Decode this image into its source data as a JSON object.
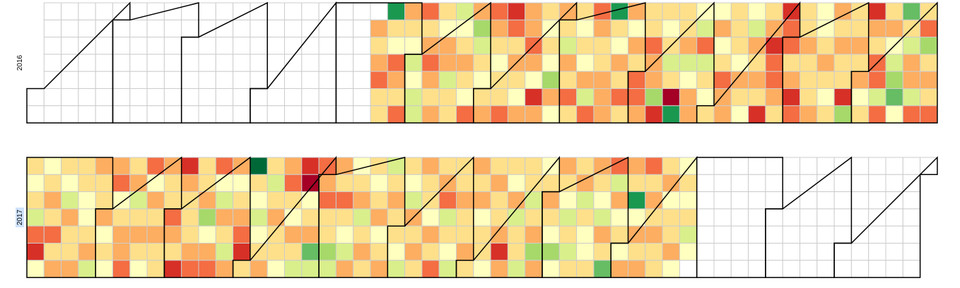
{
  "chart_data": {
    "type": "calendar",
    "colors": [
      "#a50026",
      "#d73027",
      "#f46d43",
      "#fdae61",
      "#fee08b",
      "#ffffbf",
      "#d9ef8b",
      "#a6d96a",
      "#66bd63",
      "#1a9850",
      "#006837"
    ],
    "years": [
      {
        "label": "2016",
        "values": [
          null,
          null,
          null,
          null,
          null,
          null,
          null,
          null,
          null,
          null,
          null,
          null,
          null,
          null,
          null,
          null,
          null,
          null,
          null,
          null,
          null,
          null,
          null,
          null,
          null,
          null,
          null,
          null,
          null,
          null,
          null,
          null,
          null,
          null,
          null,
          null,
          null,
          null,
          null,
          null,
          null,
          null,
          null,
          null,
          null,
          null,
          null,
          null,
          null,
          null,
          null,
          null,
          null,
          null,
          null,
          null,
          null,
          null,
          null,
          null,
          null,
          null,
          null,
          null,
          null,
          null,
          null,
          null,
          null,
          null,
          null,
          null,
          null,
          null,
          null,
          null,
          null,
          null,
          null,
          null,
          null,
          null,
          null,
          null,
          null,
          null,
          null,
          null,
          null,
          null,
          null,
          null,
          null,
          null,
          null,
          null,
          null,
          null,
          null,
          null,
          null,
          null,
          null,
          null,
          null,
          null,
          null,
          null,
          null,
          null,
          null,
          null,
          null,
          null,
          null,
          null,
          null,
          null,
          null,
          null,
          null,
          null,
          null,
          null,
          null,
          null,
          null,
          null,
          null,
          null,
          null,
          null,
          null,
          null,
          null,
          null,
          3,
          4,
          3,
          2,
          4,
          4,
          9,
          4,
          5,
          2,
          3,
          4,
          2,
          3,
          4,
          5,
          6,
          5,
          6,
          6,
          2,
          4,
          3,
          2,
          3,
          4,
          3,
          4,
          5,
          3,
          3,
          6,
          4,
          4,
          6,
          5,
          4,
          3,
          4,
          5,
          2,
          3,
          7,
          6,
          4,
          5,
          4,
          3,
          2,
          3,
          4,
          5,
          4,
          4,
          2,
          1,
          2,
          4,
          3,
          4,
          5,
          3,
          3,
          3,
          2,
          3,
          5,
          1,
          3,
          4,
          5,
          4,
          5,
          7,
          3,
          5,
          3,
          4,
          6,
          3,
          4,
          2,
          4,
          4,
          5,
          4,
          5,
          3,
          6,
          2,
          2,
          3,
          4,
          4,
          3,
          3,
          3,
          9,
          4,
          5,
          3,
          4,
          2,
          4,
          3,
          5,
          3,
          4,
          2,
          2,
          3,
          4,
          4,
          2,
          3,
          3,
          7,
          1,
          4,
          5,
          4,
          6,
          4,
          0,
          9,
          4,
          4,
          3,
          6,
          5,
          3,
          3,
          5,
          6,
          2,
          6,
          4,
          5,
          4,
          5,
          3,
          5,
          4,
          2,
          3,
          3,
          4,
          4,
          4,
          5,
          3,
          4,
          5,
          5,
          6,
          3,
          4,
          3,
          4,
          1,
          4,
          3,
          1,
          2,
          2,
          3,
          4,
          1,
          2,
          2,
          4,
          3,
          1,
          2,
          4,
          4,
          3,
          4,
          4,
          4,
          3,
          5,
          5,
          4,
          3,
          4,
          5,
          4,
          3,
          4,
          3,
          4,
          4,
          1,
          7,
          4,
          4,
          3,
          4,
          3,
          5,
          4,
          1,
          3,
          4,
          2,
          2,
          6,
          2,
          4,
          3,
          5,
          6,
          7,
          8,
          5,
          8,
          4,
          6,
          3,
          3,
          6,
          2,
          4,
          2,
          7,
          4,
          3,
          4,
          2
        ]
      },
      {
        "label": "2017",
        "values": [
          4,
          5,
          4,
          6,
          2,
          1,
          5,
          5,
          4,
          3,
          4,
          2,
          4,
          3,
          4,
          5,
          6,
          3,
          4,
          4,
          3,
          4,
          4,
          5,
          5,
          4,
          3,
          6,
          3,
          4,
          4,
          3,
          5,
          4,
          5,
          3,
          2,
          5,
          4,
          3,
          3,
          2,
          4,
          3,
          6,
          4,
          3,
          4,
          5,
          2,
          5,
          3,
          4,
          3,
          4,
          4,
          3,
          4,
          4,
          2,
          3,
          4,
          1,
          1,
          3,
          4,
          4,
          4,
          3,
          2,
          4,
          4,
          3,
          7,
          5,
          3,
          2,
          2,
          5,
          6,
          3,
          4,
          6,
          3,
          3,
          5,
          4,
          3,
          2,
          1,
          4,
          10,
          4,
          5,
          6,
          5,
          4,
          3,
          4,
          6,
          4,
          3,
          4,
          4,
          5,
          3,
          2,
          4,
          5,
          3,
          4,
          6,
          1,
          0,
          5,
          4,
          3,
          8,
          6,
          2,
          3,
          2,
          4,
          4,
          7,
          6,
          3,
          4,
          2,
          4,
          5,
          6,
          3,
          5,
          4,
          3,
          6,
          4,
          3,
          4,
          4,
          5,
          4,
          3,
          5,
          4,
          3,
          6,
          4,
          3,
          4,
          4,
          5,
          6,
          4,
          5,
          6,
          3,
          4,
          3,
          4,
          3,
          4,
          4,
          5,
          3,
          4,
          2,
          4,
          3,
          2,
          6,
          4,
          5,
          6,
          4,
          4,
          3,
          4,
          4,
          3,
          4,
          3,
          4,
          3,
          5,
          4,
          4,
          5,
          4,
          3,
          4,
          4,
          3,
          1,
          3,
          4,
          5,
          3,
          6,
          4,
          4,
          6,
          4,
          4,
          6,
          4,
          3,
          7,
          3,
          5,
          4,
          3,
          4,
          5,
          7,
          5,
          3,
          4,
          5,
          6,
          4,
          6,
          4,
          4,
          3,
          6,
          4,
          5,
          5,
          4,
          3,
          4,
          5,
          6,
          3,
          4,
          8,
          2,
          6,
          3,
          5,
          4,
          5,
          3,
          3,
          4,
          9,
          5,
          3,
          4,
          3,
          2,
          4,
          3,
          4,
          3,
          4,
          4,
          4,
          3,
          5,
          4,
          4,
          3,
          5,
          5,
          4,
          5,
          4,
          6,
          5,
          null,
          null,
          null,
          null,
          null,
          null,
          null,
          null,
          null,
          null,
          null,
          null,
          null,
          null,
          null,
          null,
          null,
          null,
          null,
          null,
          null,
          null,
          null,
          null,
          null,
          null,
          null,
          null,
          null,
          null,
          null,
          null,
          null,
          null,
          null,
          null,
          null,
          null,
          null,
          null,
          null,
          null,
          null,
          null,
          null,
          null,
          null,
          null,
          null,
          null,
          null,
          null,
          null,
          null,
          null,
          null,
          null,
          null,
          null,
          null,
          null,
          null,
          null,
          null,
          null,
          null,
          null,
          null,
          null,
          null,
          null,
          null,
          null,
          null,
          null,
          null,
          null,
          null,
          null,
          null,
          null,
          null,
          null,
          null,
          null,
          null,
          null,
          null,
          null,
          null,
          null,
          null,
          null
        ]
      }
    ]
  }
}
